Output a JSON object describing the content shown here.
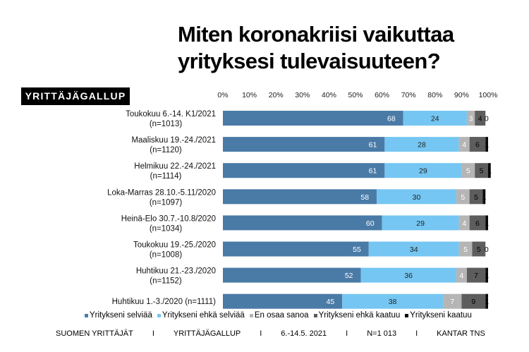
{
  "title": {
    "line1": "Miten koronakriisi vaikuttaa",
    "line2": "yrityksesi tulevaisuuteen?"
  },
  "brand": "YRITTÄJÄGALLUP",
  "chart_data": {
    "type": "bar",
    "orientation": "horizontal",
    "stacked": true,
    "xlim": [
      0,
      100
    ],
    "xticks": [
      "0%",
      "10%",
      "20%",
      "30%",
      "40%",
      "50%",
      "60%",
      "70%",
      "80%",
      "90%",
      "100%"
    ],
    "categories": [
      [
        "Toukokuu 6.-14. K1/2021",
        "(n=1013)"
      ],
      [
        "Maaliskuu 19.-24./2021",
        "(n=1120)"
      ],
      [
        "Helmikuu 22.-24./2021",
        "(n=1114)"
      ],
      [
        "Loka-Marras 28.10.-5.11/2020",
        "(n=1097)"
      ],
      [
        "Heinä-Elo 30.7.-10.8/2020",
        "(n=1034)"
      ],
      [
        "Toukokuu 19.-25./2020",
        "(n=1008)"
      ],
      [
        "Huhtikuu 21.-23./2020",
        "(n=1152)"
      ],
      [
        "Huhtikuu 1.-3./2020 (n=1111)"
      ]
    ],
    "series": [
      {
        "name": "Yritykseni selviää",
        "color": "#4a7ba7",
        "label_color": "#ffffff",
        "values": [
          68,
          61,
          61,
          58,
          60,
          55,
          52,
          45
        ]
      },
      {
        "name": "Yritykseni ehkä selviää",
        "color": "#75c6f2",
        "label_color": "#222222",
        "values": [
          24,
          28,
          29,
          30,
          29,
          34,
          36,
          38
        ]
      },
      {
        "name": "En osaa sanoa",
        "color": "#b5b5b5",
        "label_color": "#ffffff",
        "values": [
          3,
          4,
          5,
          5,
          4,
          5,
          4,
          7
        ]
      },
      {
        "name": "Yritykseni ehkä kaatuu",
        "color": "#5d5d5d",
        "label_color": "#000000",
        "values": [
          4,
          6,
          5,
          5,
          6,
          5,
          7,
          9
        ]
      },
      {
        "name": "Yritykseni kaatuu",
        "color": "#0a0a0a",
        "label_color": "#000000",
        "values": [
          0,
          1,
          1,
          1,
          1,
          0,
          1,
          1
        ]
      }
    ]
  },
  "footer": [
    "SUOMEN YRITTÄJÄT",
    "YRITTÄJÄGALLUP",
    "6.-14.5. 2021",
    "N=1 013",
    "KANTAR TNS"
  ],
  "footer_sep": "I"
}
